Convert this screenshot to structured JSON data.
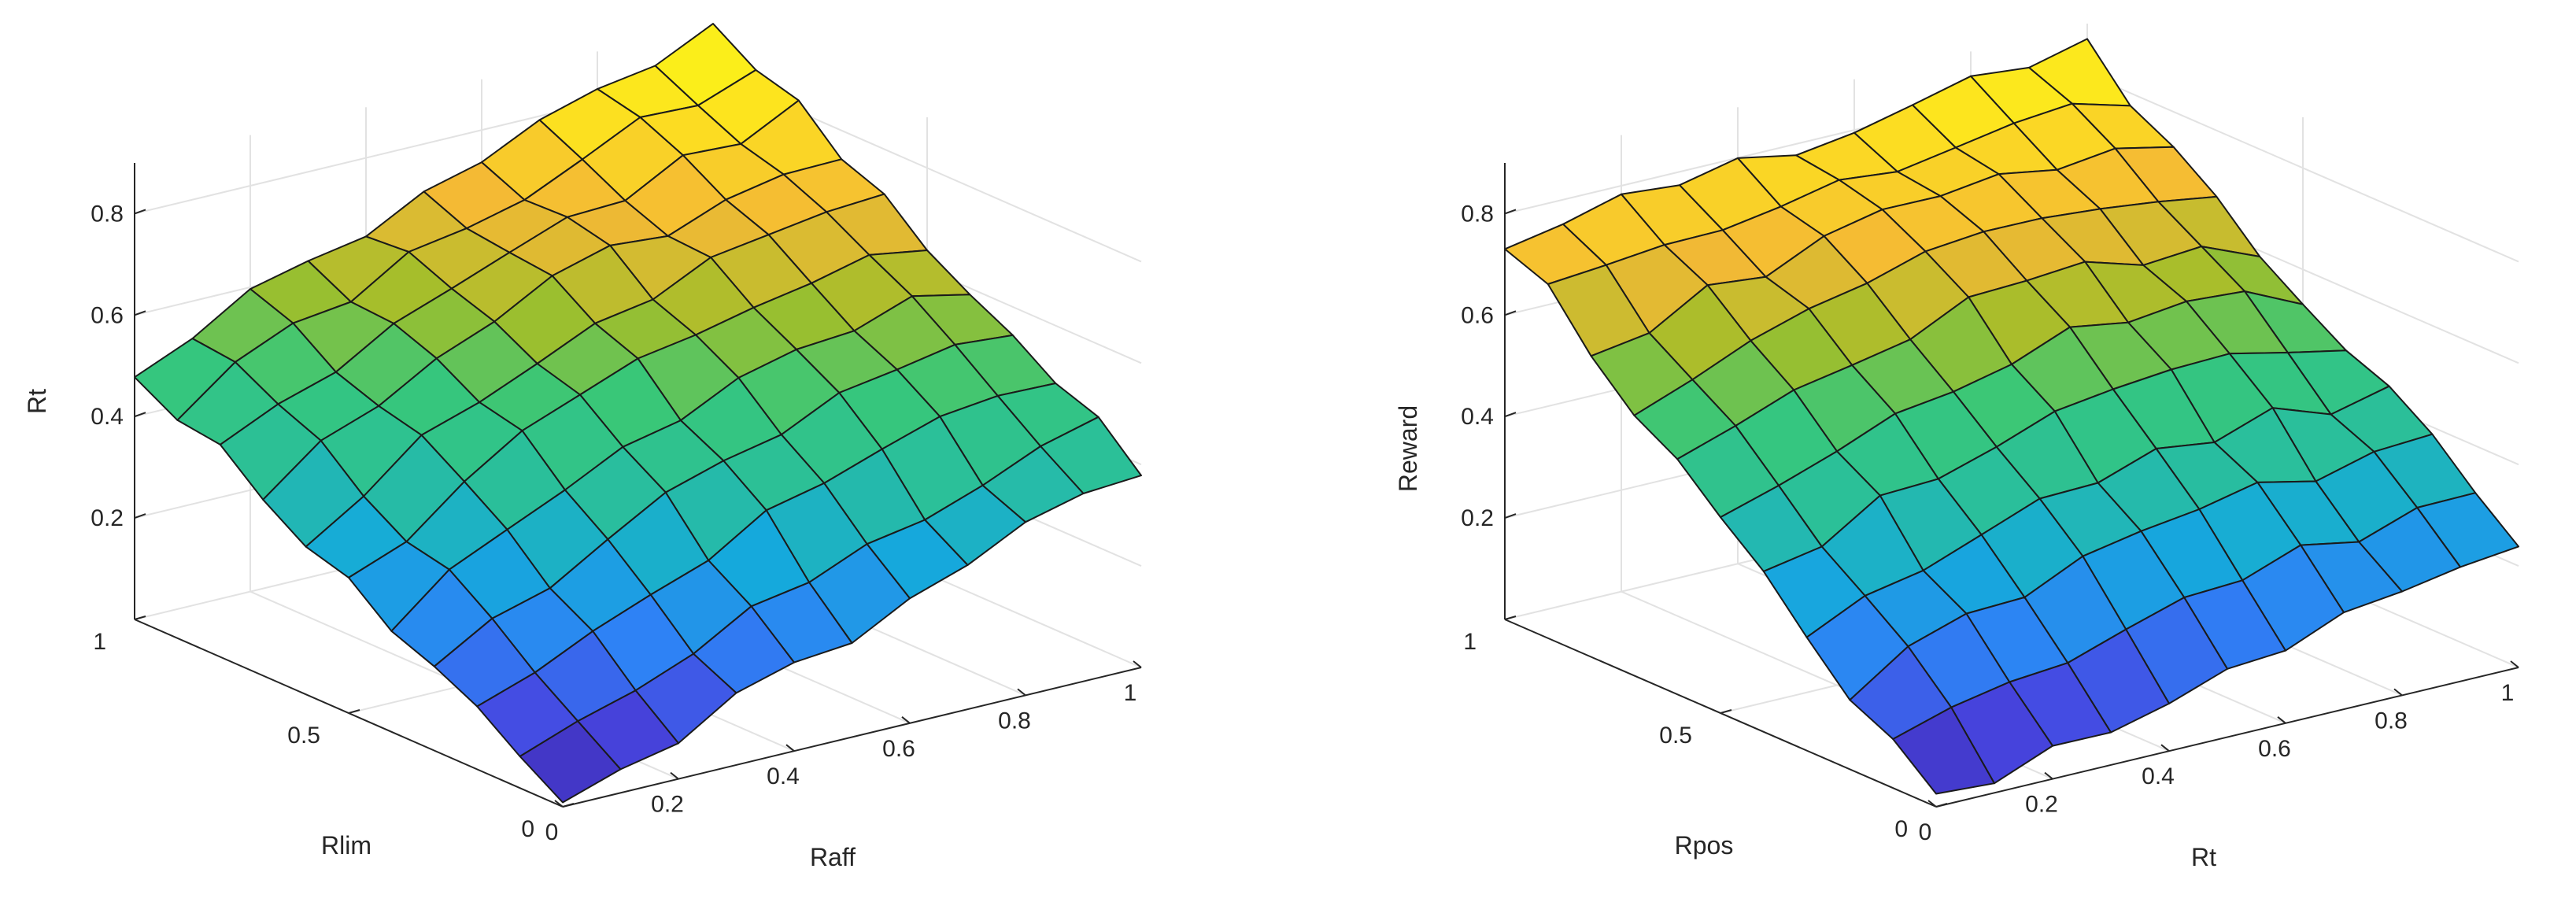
{
  "chart_data": [
    {
      "type": "surface",
      "title": "",
      "xlabel": "Raff",
      "ylabel": "Rlim",
      "zlabel": "Rt",
      "xlim": [
        0,
        1
      ],
      "ylim": [
        0,
        1
      ],
      "zlim": [
        0,
        0.9
      ],
      "x_ticks": [
        "0.2",
        "0.4",
        "0.6",
        "0.8",
        "1"
      ],
      "y_ticks": [
        "0",
        "0.5",
        "1"
      ],
      "z_ticks": [
        "0.2",
        "0.4",
        "0.6",
        "0.8"
      ],
      "x_origin_label": "0",
      "grid": true,
      "colormap": "parula",
      "mesh_size": [
        11,
        11
      ],
      "corners": {
        "x0_y0": 0.01,
        "x1_y0": 0.4,
        "x0_y1": 0.5,
        "x1_y1": 0.9
      }
    },
    {
      "type": "surface",
      "title": "",
      "xlabel": "Rt",
      "ylabel": "Rpos",
      "zlabel": "Reward",
      "xlim": [
        0,
        1
      ],
      "ylim": [
        0,
        1
      ],
      "zlim": [
        0,
        0.9
      ],
      "x_ticks": [
        "0.2",
        "0.4",
        "0.6",
        "0.8",
        "1"
      ],
      "y_ticks": [
        "0",
        "0.5",
        "1"
      ],
      "z_ticks": [
        "0.2",
        "0.4",
        "0.6",
        "0.8"
      ],
      "x_origin_label": "0",
      "grid": true,
      "colormap": "parula",
      "mesh_size": [
        11,
        11
      ],
      "corners": {
        "x0_y0": 0.01,
        "x1_y0": 0.25,
        "x0_y1": 0.75,
        "x1_y1": 0.85
      }
    }
  ],
  "colors": {
    "edge": "#1a1a1a",
    "axis": "#262626",
    "grid": "#e2e2e2",
    "parula": [
      "#3e26a8",
      "#4745e0",
      "#2e82f5",
      "#15aadb",
      "#2abf9b",
      "#37c77a",
      "#a1be2a",
      "#f4b935",
      "#fde21f",
      "#f9fb15"
    ]
  }
}
